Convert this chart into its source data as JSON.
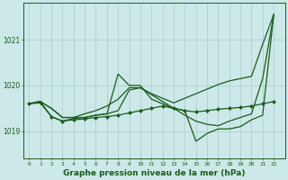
{
  "background_color": "#cce8e8",
  "grid_color": "#aacccc",
  "line_color": "#1a5c1a",
  "xlabel": "Graphe pression niveau de la mer (hPa)",
  "xlabel_fontsize": 6.5,
  "ylabel_ticks": [
    1019,
    1020,
    1021
  ],
  "xlim": [
    -0.5,
    23
  ],
  "ylim": [
    1018.4,
    1021.8
  ],
  "series": [
    {
      "y": [
        1019.6,
        1019.65,
        1019.5,
        1019.3,
        1019.3,
        1019.3,
        1019.35,
        1019.38,
        1020.25,
        1020.0,
        1020.0,
        1019.7,
        1019.6,
        1019.5,
        1019.45,
        1018.78,
        1018.95,
        1019.05,
        1019.05,
        1019.1,
        1019.25,
        1019.35,
        1021.55
      ],
      "marker": false
    },
    {
      "y": [
        1019.6,
        1019.65,
        1019.5,
        1019.3,
        1019.3,
        1019.38,
        1019.45,
        1019.55,
        1019.7,
        1019.95,
        1019.95,
        1019.82,
        1019.72,
        1019.62,
        1019.72,
        1019.82,
        1019.92,
        1020.02,
        1020.1,
        1020.15,
        1020.2,
        1020.9,
        1021.55
      ],
      "marker": false
    },
    {
      "y": [
        1019.6,
        1019.65,
        1019.32,
        1019.22,
        1019.28,
        1019.3,
        1019.35,
        1019.38,
        1019.45,
        1019.9,
        1019.95,
        1019.8,
        1019.65,
        1019.5,
        1019.35,
        1019.22,
        1019.15,
        1019.12,
        1019.22,
        1019.3,
        1019.38,
        1020.15,
        1021.55
      ],
      "marker": false
    },
    {
      "y": [
        1019.6,
        1019.62,
        1019.32,
        1019.22,
        1019.25,
        1019.27,
        1019.3,
        1019.32,
        1019.35,
        1019.4,
        1019.45,
        1019.5,
        1019.55,
        1019.5,
        1019.45,
        1019.42,
        1019.45,
        1019.48,
        1019.5,
        1019.52,
        1019.55,
        1019.6,
        1019.65
      ],
      "marker": true
    }
  ],
  "marker_size": 2.2,
  "linewidth": 0.9
}
